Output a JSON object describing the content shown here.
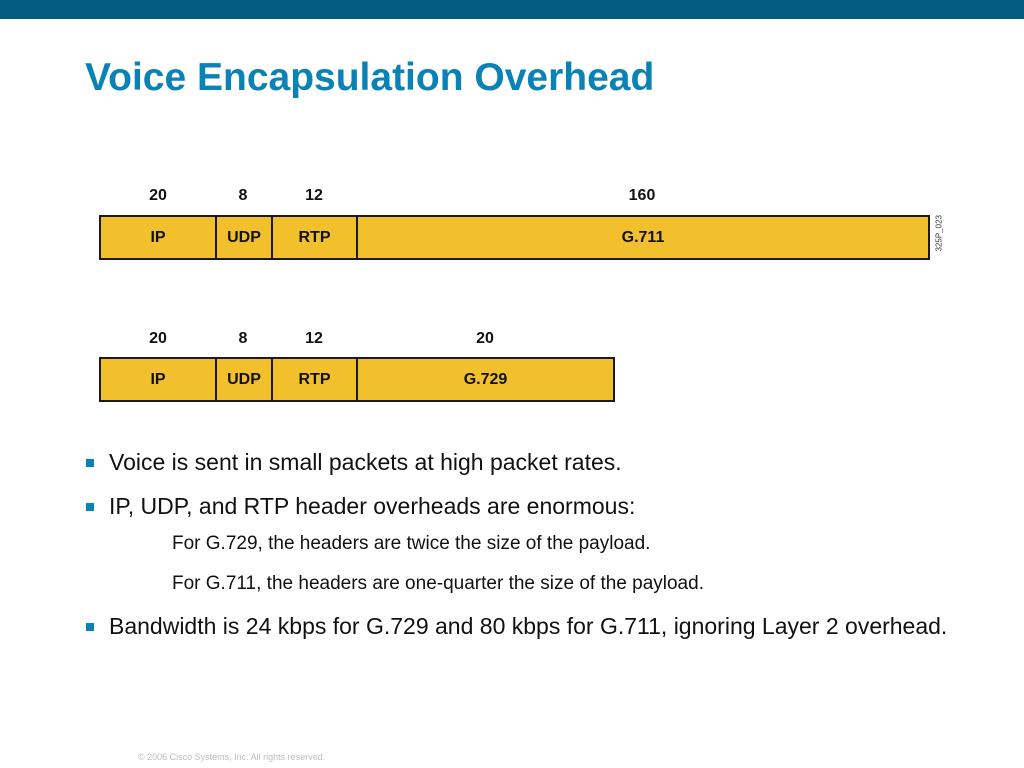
{
  "slide": {
    "title": "Voice Encapsulation Overhead",
    "figure_id": "325P_023",
    "footer": "© 2006 Cisco Systems, Inc. All rights reserved."
  },
  "colors": {
    "top_bar": "#045b82",
    "title": "#0a82b6",
    "segment_fill": "#f2c02c",
    "bullet_marker": "#0a82b6"
  },
  "packets": [
    {
      "segments": [
        {
          "label": "IP",
          "size": "20"
        },
        {
          "label": "UDP",
          "size": "8"
        },
        {
          "label": "RTP",
          "size": "12"
        },
        {
          "label": "G.711",
          "size": "160"
        }
      ]
    },
    {
      "segments": [
        {
          "label": "IP",
          "size": "20"
        },
        {
          "label": "UDP",
          "size": "8"
        },
        {
          "label": "RTP",
          "size": "12"
        },
        {
          "label": "G.729",
          "size": "20"
        }
      ]
    }
  ],
  "bullets": [
    {
      "text": "Voice is sent in small packets at high packet rates."
    },
    {
      "text": "IP, UDP, and RTP header overheads are enormous:",
      "subs": [
        "For G.729, the headers are twice the size of the payload.",
        "For G.711, the headers are one-quarter the size of the payload."
      ]
    },
    {
      "text": "Bandwidth is 24 kbps for G.729 and 80 kbps for G.711, ignoring Layer 2 overhead."
    }
  ]
}
